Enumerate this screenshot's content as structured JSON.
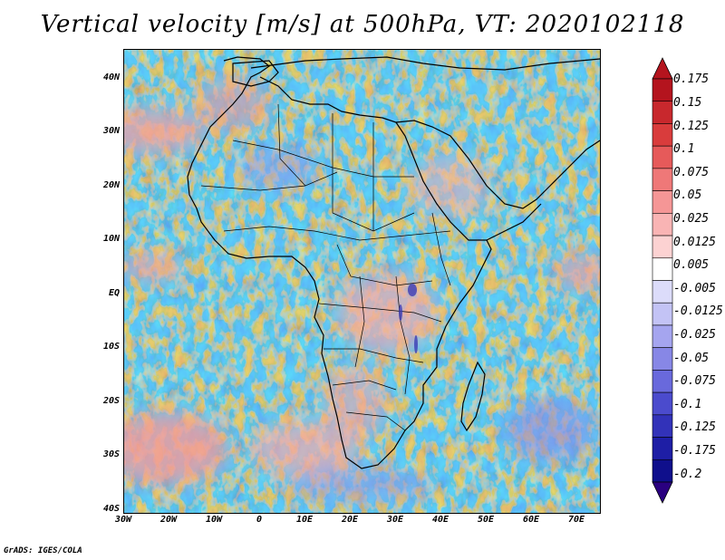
{
  "title": "Vertical velocity [m/s] at 500hPa, VT: 2020102118",
  "map": {
    "lat_labels": [
      "40N",
      "30N",
      "20N",
      "10N",
      "EQ",
      "10S",
      "20S",
      "30S",
      "40S"
    ],
    "lon_labels": [
      "30W",
      "20W",
      "10W",
      "0",
      "10E",
      "20E",
      "30E",
      "40E",
      "50E",
      "60E",
      "70E"
    ]
  },
  "colorbar": {
    "labels": [
      "0.175",
      "0.15",
      "0.125",
      "0.1",
      "0.075",
      "0.05",
      "0.025",
      "0.0125",
      "0.005",
      "-0.005",
      "-0.0125",
      "-0.025",
      "-0.05",
      "-0.075",
      "-0.1",
      "-0.125",
      "-0.175",
      "-0.2"
    ],
    "colors": [
      "#b4141e",
      "#c8282d",
      "#d93c3c",
      "#e65a5a",
      "#ef7878",
      "#f59696",
      "#f9b4b4",
      "#fcd2d2",
      "#ffffff",
      "#dcdcfa",
      "#c3c3f5",
      "#a5a5ef",
      "#8787e6",
      "#6969dc",
      "#4b4bcd",
      "#3232b9",
      "#1e1ea5",
      "#0f0f8c"
    ]
  },
  "footer": "GrADS: IGES/COLA"
}
